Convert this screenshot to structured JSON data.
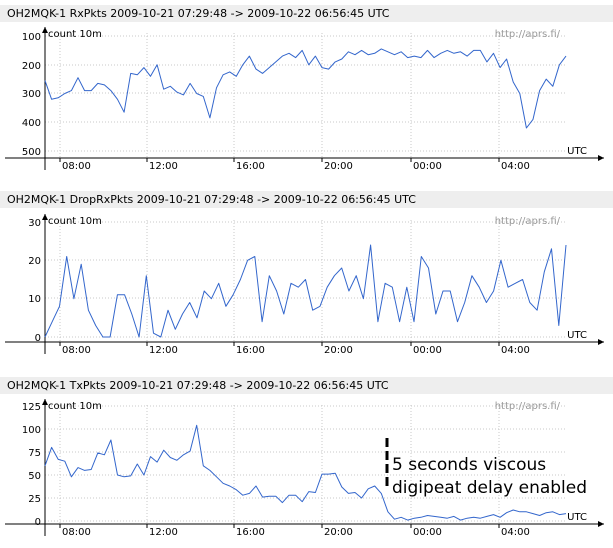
{
  "chart_data": [
    {
      "type": "line",
      "title": "OH2MQK-1 RxPkts   2009-10-21 07:29:48 -> 2009-10-22 06:56:45 UTC",
      "ylabel": "count 10m",
      "source": "http://aprs.fi/",
      "xlabel": "UTC",
      "x_ticks": [
        "08:00",
        "12:00",
        "16:00",
        "20:00",
        "00:00",
        "04:00"
      ],
      "y_ticks": [
        100,
        200,
        300,
        400,
        500
      ],
      "ylim": [
        50,
        500
      ],
      "color": "#3366cc",
      "values": [
        255,
        320,
        315,
        300,
        290,
        245,
        290,
        290,
        265,
        270,
        290,
        320,
        365,
        230,
        235,
        210,
        240,
        200,
        285,
        275,
        295,
        305,
        265,
        300,
        310,
        385,
        280,
        235,
        225,
        240,
        200,
        170,
        215,
        230,
        210,
        190,
        170,
        160,
        175,
        150,
        200,
        170,
        210,
        215,
        190,
        180,
        155,
        165,
        150,
        165,
        160,
        145,
        155,
        165,
        155,
        175,
        170,
        175,
        150,
        175,
        160,
        150,
        160,
        155,
        170,
        150,
        150,
        190,
        160,
        210,
        180,
        260,
        300,
        420,
        390,
        290,
        250,
        275,
        200,
        170
      ]
    },
    {
      "type": "line",
      "title": "OH2MQK-1 DropRxPkts   2009-10-21 07:29:48 -> 2009-10-22 06:56:45 UTC",
      "ylabel": "count 10m",
      "source": "http://aprs.fi/",
      "xlabel": "UTC",
      "x_ticks": [
        "08:00",
        "04:00",
        "12:00",
        "16:00",
        "20:00",
        "00:00"
      ],
      "x_ticks_order": [
        "08:00",
        "12:00",
        "16:00",
        "20:00",
        "00:00",
        "04:00"
      ],
      "y_ticks": [
        0,
        10,
        20,
        30
      ],
      "ylim": [
        0,
        30
      ],
      "color": "#3366cc",
      "values": [
        0,
        4,
        8,
        21,
        10,
        19,
        7,
        3,
        0,
        0,
        11,
        11,
        6,
        0,
        16,
        1,
        0,
        7,
        2,
        6,
        9,
        5,
        12,
        10,
        14,
        8,
        11,
        15,
        20,
        21,
        4,
        16,
        12,
        6,
        14,
        13,
        15,
        7,
        8,
        13,
        16,
        18,
        12,
        16,
        10,
        24,
        4,
        14,
        13,
        4,
        13,
        4,
        21,
        18,
        6,
        12,
        12,
        4,
        9,
        16,
        13,
        9,
        12,
        20,
        13,
        14,
        15,
        9,
        7,
        17,
        23,
        3,
        24
      ]
    },
    {
      "type": "line",
      "title": "OH2MQK-1 TxPkts   2009-10-21 07:29:48 -> 2009-10-22 06:56:45 UTC",
      "ylabel": "count 10m",
      "source": "http://aprs.fi/",
      "xlabel": "UTC",
      "x_ticks": [
        "08:00",
        "12:00",
        "16:00",
        "20:00",
        "00:00",
        "04:00"
      ],
      "y_ticks": [
        0,
        25,
        50,
        75,
        100,
        125
      ],
      "ylim": [
        -10,
        125
      ],
      "color": "#3366cc",
      "annotation": [
        "5 seconds viscous",
        "digipeat delay enabled"
      ],
      "values": [
        60,
        80,
        67,
        65,
        48,
        58,
        55,
        56,
        74,
        72,
        88,
        50,
        48,
        49,
        62,
        50,
        70,
        64,
        77,
        69,
        66,
        72,
        76,
        104,
        60,
        55,
        48,
        41,
        38,
        34,
        28,
        30,
        38,
        26,
        27,
        27,
        20,
        28,
        28,
        21,
        32,
        31,
        51,
        51,
        52,
        37,
        30,
        31,
        25,
        35,
        38,
        30,
        10,
        2,
        4,
        1,
        3,
        4,
        6,
        5,
        4,
        3,
        5,
        1,
        3,
        4,
        3,
        5,
        7,
        4,
        9,
        12,
        10,
        10,
        8,
        6,
        9,
        10,
        7,
        8
      ]
    }
  ]
}
